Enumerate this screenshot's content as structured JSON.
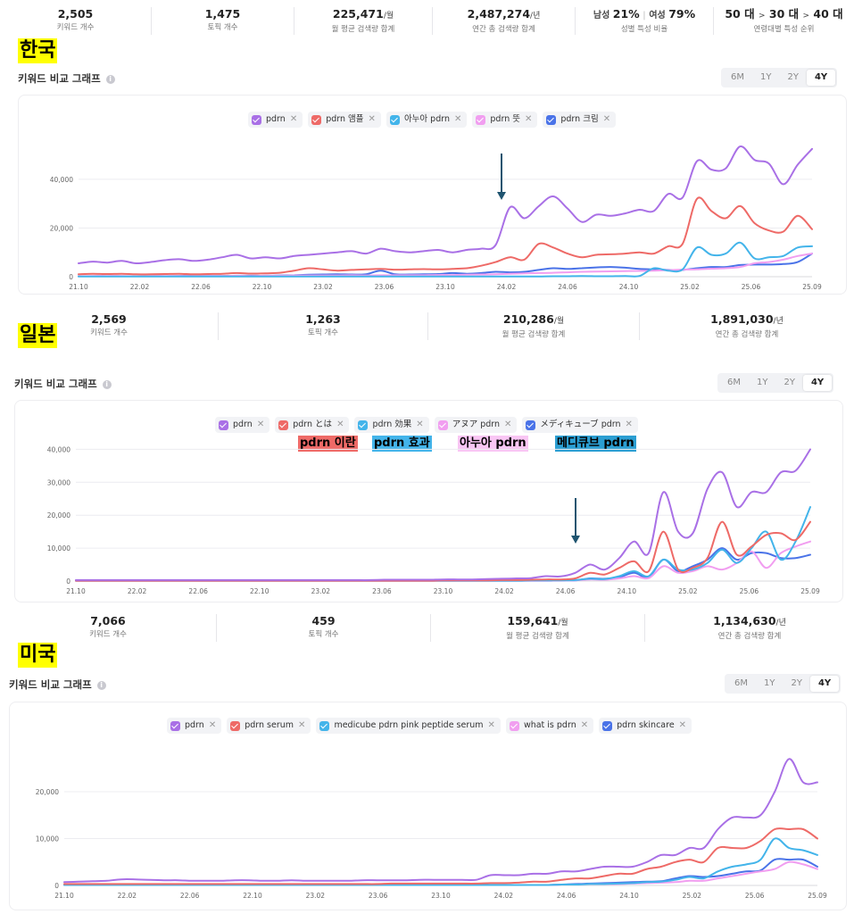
{
  "colors": {
    "purple": "#a970e6",
    "red": "#ee6a67",
    "cyan": "#43b4ea",
    "pink": "#f19ef0",
    "blue": "#4a73e8",
    "highlight": "#ffff00",
    "arrow": "#1f5470"
  },
  "range_buttons": [
    "6M",
    "1Y",
    "2Y",
    "4Y"
  ],
  "sections": [
    {
      "country": "한국",
      "stats": [
        {
          "value": "2,505",
          "unit": "",
          "label": "키워드 개수"
        },
        {
          "value": "1,475",
          "unit": "",
          "label": "토픽 개수"
        },
        {
          "value": "225,471",
          "unit": "/월",
          "label": "월 평균 검색량 합계"
        },
        {
          "value": "2,487,274",
          "unit": "/년",
          "label": "연간 총 검색량 합계"
        }
      ],
      "gender": {
        "male_label": "남성",
        "male": "21%",
        "female_label": "여성",
        "female": "79%",
        "label": "성별 특성 비율"
      },
      "age": {
        "a": "50 대",
        "b": "30 대",
        "c": "40 대",
        "label": "연령대별 특성 순위"
      },
      "graph_title": "키워드 비교 그래프",
      "active_range": "4Y",
      "chips": [
        "pdrn",
        "pdrn 앰플",
        "아누아 pdrn",
        "pdrn 뜻",
        "pdrn 크림"
      ]
    },
    {
      "country": "일본",
      "stats": [
        {
          "value": "2,569",
          "unit": "",
          "label": "키워드 개수"
        },
        {
          "value": "1,263",
          "unit": "",
          "label": "토픽 개수"
        },
        {
          "value": "210,286",
          "unit": "/월",
          "label": "월 평균 검색량 합계"
        },
        {
          "value": "1,891,030",
          "unit": "/년",
          "label": "연간 총 검색량 합계"
        }
      ],
      "graph_title": "키워드 비교 그래프",
      "active_range": "4Y",
      "chips": [
        "pdrn",
        "pdrn とは",
        "pdrn 効果",
        "アヌア pdrn",
        "メディキューブ pdrn"
      ],
      "translations": [
        "pdrn 이란",
        "pdrn 효과",
        "아누아 pdrn",
        "메디큐브 pdrn"
      ]
    },
    {
      "country": "미국",
      "stats": [
        {
          "value": "7,066",
          "unit": "",
          "label": "키워드 개수"
        },
        {
          "value": "459",
          "unit": "",
          "label": "토픽 개수"
        },
        {
          "value": "159,641",
          "unit": "/월",
          "label": "월 평균 검색량 합계"
        },
        {
          "value": "1,134,630",
          "unit": "/년",
          "label": "연간 총 검색량 합계"
        }
      ],
      "graph_title": "키워드 비교 그래프",
      "active_range": "4Y",
      "chips": [
        "pdrn",
        "pdrn serum",
        "medicube pdrn pink peptide serum",
        "what is pdrn",
        "pdrn skincare"
      ]
    }
  ],
  "chart_data": [
    {
      "type": "line",
      "title": "키워드 비교 그래프 (한국)",
      "x_ticks": [
        "21.10",
        "22.02",
        "22.06",
        "22.10",
        "23.02",
        "23.06",
        "23.10",
        "24.02",
        "24.06",
        "24.10",
        "25.02",
        "25.06",
        "25.09"
      ],
      "y_ticks": [
        "0",
        "20,000",
        "40,000"
      ],
      "ylim": [
        0,
        55000
      ],
      "annotation": "arrow at 24.01",
      "series": [
        {
          "name": "pdrn",
          "color": "purple",
          "values": [
            5500,
            6200,
            5800,
            6500,
            5500,
            6000,
            6800,
            7200,
            6500,
            7000,
            8000,
            9000,
            7500,
            8000,
            7500,
            8500,
            9000,
            9500,
            10000,
            10500,
            9500,
            11500,
            10500,
            10000,
            10500,
            11000,
            10000,
            11000,
            11500,
            13000,
            28500,
            24000,
            29000,
            33000,
            28000,
            22500,
            25500,
            25000,
            26000,
            27500,
            27000,
            34000,
            32500,
            47500,
            44000,
            44500,
            53500,
            48000,
            46500,
            38000,
            46000,
            52500
          ]
        },
        {
          "name": "pdrn 앰플",
          "color": "red",
          "values": [
            1000,
            1200,
            1100,
            1200,
            1000,
            1000,
            1100,
            1200,
            1000,
            1100,
            1200,
            1500,
            1300,
            1400,
            1600,
            2500,
            3500,
            3000,
            2500,
            2800,
            3000,
            3200,
            2900,
            3000,
            3100,
            3000,
            3200,
            3500,
            4500,
            6000,
            8000,
            7000,
            13500,
            12000,
            9500,
            8000,
            9000,
            9200,
            9500,
            10000,
            9500,
            12500,
            13500,
            32000,
            27000,
            24000,
            29000,
            22000,
            19000,
            18500,
            25000,
            19500
          ]
        },
        {
          "name": "아누아 pdrn",
          "color": "cyan",
          "values": [
            100,
            100,
            100,
            100,
            100,
            100,
            100,
            100,
            100,
            100,
            100,
            100,
            100,
            100,
            100,
            100,
            100,
            100,
            100,
            100,
            100,
            100,
            100,
            100,
            100,
            100,
            100,
            100,
            100,
            100,
            100,
            100,
            100,
            200,
            200,
            300,
            200,
            200,
            300,
            300,
            3500,
            2500,
            3000,
            12000,
            9000,
            9500,
            14000,
            7500,
            8000,
            8500,
            12000,
            12500
          ]
        },
        {
          "name": "pdrn 뜻",
          "color": "pink",
          "values": [
            200,
            300,
            300,
            300,
            200,
            300,
            300,
            300,
            300,
            300,
            300,
            400,
            300,
            400,
            400,
            500,
            500,
            500,
            500,
            600,
            500,
            600,
            600,
            600,
            600,
            700,
            700,
            800,
            900,
            1000,
            1200,
            1400,
            1500,
            1600,
            1800,
            2000,
            2100,
            2200,
            2300,
            2400,
            2500,
            2700,
            2900,
            3000,
            3300,
            3500,
            4000,
            5500,
            6000,
            7000,
            8500,
            9500
          ]
        },
        {
          "name": "pdrn 크림",
          "color": "blue",
          "values": [
            200,
            200,
            200,
            200,
            200,
            200,
            200,
            300,
            300,
            300,
            300,
            400,
            400,
            400,
            500,
            600,
            800,
            900,
            1000,
            900,
            1000,
            2500,
            1000,
            900,
            1000,
            1100,
            1500,
            1200,
            1500,
            2000,
            1800,
            2000,
            2800,
            3500,
            3200,
            3500,
            3800,
            4000,
            3700,
            3200,
            3000,
            2800,
            2800,
            3500,
            4000,
            4000,
            4800,
            5000,
            5000,
            5200,
            6000,
            9500
          ]
        }
      ]
    },
    {
      "type": "line",
      "title": "키워드 비교 그래프 (일본)",
      "x_ticks": [
        "21.10",
        "22.02",
        "22.06",
        "22.10",
        "23.02",
        "23.06",
        "23.10",
        "24.02",
        "24.06",
        "24.10",
        "25.02",
        "25.06",
        "25.09"
      ],
      "y_ticks": [
        "0",
        "10,000",
        "20,000",
        "30,000",
        "40,000"
      ],
      "ylim": [
        0,
        42000
      ],
      "annotation": "arrow at 24.06",
      "series": [
        {
          "name": "pdrn",
          "color": "purple",
          "values": [
            300,
            300,
            300,
            300,
            300,
            300,
            300,
            300,
            300,
            300,
            300,
            300,
            300,
            300,
            300,
            300,
            300,
            300,
            300,
            300,
            300,
            400,
            400,
            400,
            400,
            500,
            500,
            500,
            600,
            700,
            800,
            900,
            1500,
            1400,
            2500,
            5000,
            3500,
            7000,
            12000,
            8500,
            27000,
            15000,
            14500,
            28000,
            33000,
            22500,
            27000,
            27000,
            33000,
            33500,
            40000
          ]
        },
        {
          "name": "pdrn とは",
          "color": "red",
          "values": [
            100,
            100,
            100,
            100,
            100,
            100,
            100,
            100,
            100,
            100,
            100,
            100,
            100,
            100,
            100,
            100,
            100,
            100,
            100,
            100,
            100,
            100,
            100,
            100,
            100,
            200,
            200,
            200,
            200,
            300,
            300,
            400,
            500,
            500,
            800,
            2500,
            2000,
            4000,
            6000,
            3000,
            15000,
            3500,
            4000,
            7000,
            18000,
            8000,
            10500,
            14000,
            14500,
            12500,
            18000
          ]
        },
        {
          "name": "pdrn 効果",
          "color": "cyan",
          "values": [
            100,
            100,
            100,
            100,
            100,
            100,
            100,
            100,
            100,
            100,
            100,
            100,
            100,
            100,
            100,
            100,
            100,
            100,
            100,
            100,
            100,
            100,
            100,
            100,
            100,
            100,
            100,
            100,
            100,
            100,
            100,
            200,
            200,
            200,
            300,
            700,
            600,
            1500,
            3000,
            1500,
            6500,
            3500,
            3500,
            5500,
            9500,
            5500,
            10000,
            15000,
            6500,
            12000,
            22500
          ]
        },
        {
          "name": "アヌア pdrn",
          "color": "pink",
          "values": [
            100,
            100,
            100,
            100,
            100,
            100,
            100,
            100,
            100,
            100,
            100,
            100,
            100,
            100,
            100,
            100,
            100,
            100,
            100,
            100,
            100,
            100,
            100,
            100,
            100,
            100,
            100,
            100,
            100,
            100,
            100,
            100,
            100,
            100,
            200,
            500,
            400,
            800,
            1500,
            900,
            4500,
            2500,
            3000,
            4500,
            3500,
            5500,
            9000,
            4000,
            8500,
            10500,
            12000
          ]
        },
        {
          "name": "メディキューブ pdrn",
          "color": "blue",
          "values": [
            100,
            100,
            100,
            100,
            100,
            100,
            100,
            100,
            100,
            100,
            100,
            100,
            100,
            100,
            100,
            100,
            100,
            100,
            100,
            100,
            100,
            100,
            100,
            100,
            100,
            100,
            100,
            100,
            100,
            100,
            100,
            100,
            100,
            200,
            200,
            800,
            700,
            1200,
            2500,
            1200,
            6500,
            3000,
            4500,
            6500,
            10000,
            6500,
            8500,
            8500,
            7000,
            7000,
            8000
          ]
        }
      ]
    },
    {
      "type": "line",
      "title": "키워드 비교 그래프 (미국)",
      "x_ticks": [
        "21.10",
        "22.02",
        "22.06",
        "22.10",
        "23.02",
        "23.06",
        "23.10",
        "24.02",
        "24.06",
        "24.10",
        "25.02",
        "25.06",
        "25.09"
      ],
      "y_ticks": [
        "0",
        "10,000",
        "20,000"
      ],
      "ylim": [
        0,
        28000
      ],
      "series": [
        {
          "name": "pdrn",
          "color": "purple",
          "values": [
            700,
            800,
            900,
            1000,
            1300,
            1300,
            1200,
            1100,
            1100,
            1000,
            1000,
            1000,
            1100,
            1100,
            1000,
            1000,
            1100,
            1000,
            1000,
            1000,
            1000,
            1100,
            1100,
            1100,
            1100,
            1200,
            1200,
            1200,
            1200,
            1200,
            2200,
            2200,
            2200,
            2500,
            2500,
            3000,
            3000,
            3500,
            4000,
            4000,
            4000,
            5000,
            6500,
            6500,
            8000,
            8000,
            12000,
            14500,
            14500,
            15000,
            20000,
            27000,
            22000,
            22000
          ]
        },
        {
          "name": "pdrn serum",
          "color": "red",
          "values": [
            300,
            300,
            300,
            300,
            300,
            300,
            300,
            300,
            300,
            300,
            300,
            300,
            300,
            300,
            300,
            300,
            300,
            300,
            300,
            300,
            300,
            300,
            300,
            400,
            400,
            400,
            400,
            400,
            400,
            400,
            500,
            500,
            600,
            800,
            800,
            1200,
            1500,
            1500,
            2000,
            2500,
            2500,
            3500,
            4000,
            5000,
            5500,
            5000,
            8000,
            8000,
            8000,
            9500,
            12000,
            12000,
            12000,
            10000
          ]
        },
        {
          "name": "medicube pdrn pink peptide serum",
          "color": "cyan",
          "values": [
            100,
            100,
            100,
            100,
            100,
            100,
            100,
            100,
            100,
            100,
            100,
            100,
            100,
            100,
            100,
            100,
            100,
            100,
            100,
            100,
            100,
            100,
            100,
            100,
            100,
            100,
            100,
            100,
            100,
            100,
            100,
            100,
            100,
            100,
            100,
            200,
            200,
            300,
            300,
            400,
            500,
            700,
            800,
            1200,
            1800,
            1500,
            3000,
            4000,
            4500,
            5500,
            10000,
            8000,
            7500,
            6500
          ]
        },
        {
          "name": "what is pdrn",
          "color": "pink",
          "values": [
            100,
            100,
            100,
            100,
            100,
            100,
            100,
            100,
            100,
            100,
            100,
            100,
            100,
            100,
            100,
            100,
            100,
            100,
            100,
            100,
            100,
            100,
            100,
            100,
            100,
            100,
            100,
            100,
            100,
            100,
            100,
            100,
            100,
            100,
            100,
            200,
            200,
            300,
            300,
            300,
            400,
            500,
            600,
            700,
            1000,
            1000,
            1500,
            2000,
            2500,
            3000,
            3500,
            5000,
            4500,
            3500
          ]
        },
        {
          "name": "pdrn skincare",
          "color": "blue",
          "values": [
            100,
            100,
            100,
            100,
            100,
            100,
            100,
            100,
            100,
            100,
            100,
            100,
            100,
            100,
            100,
            100,
            100,
            100,
            100,
            100,
            100,
            100,
            100,
            100,
            100,
            100,
            100,
            100,
            100,
            100,
            100,
            100,
            100,
            100,
            100,
            200,
            300,
            400,
            500,
            600,
            700,
            800,
            900,
            1500,
            2000,
            1800,
            2000,
            2500,
            3000,
            3200,
            5500,
            5500,
            5500,
            4000
          ]
        }
      ]
    }
  ]
}
